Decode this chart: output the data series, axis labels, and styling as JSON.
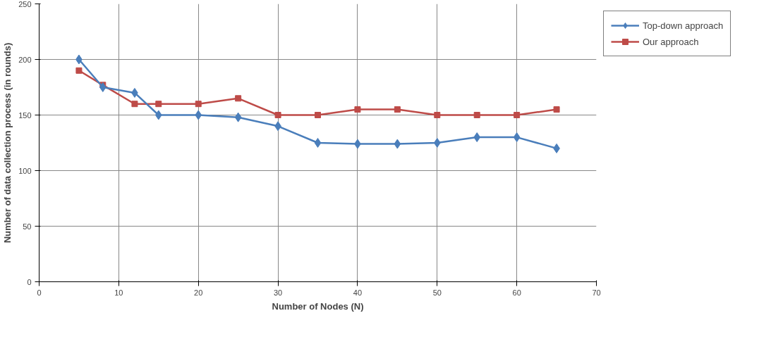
{
  "chart_data": {
    "type": "line",
    "xlabel": "Number of Nodes (N)",
    "ylabel": "Number of data collection process (in rounds)",
    "x": [
      5,
      8,
      12,
      15,
      20,
      25,
      30,
      35,
      40,
      45,
      50,
      55,
      60,
      65
    ],
    "series": [
      {
        "name": "Top-down approach",
        "color": "#4a7ebb",
        "marker": "diamond",
        "values": [
          200,
          175,
          170,
          150,
          150,
          148,
          140,
          125,
          124,
          124,
          125,
          130,
          130,
          120
        ]
      },
      {
        "name": "Our approach",
        "color": "#be4b48",
        "marker": "square",
        "values": [
          190,
          177,
          160,
          160,
          160,
          165,
          150,
          150,
          155,
          155,
          150,
          150,
          150,
          155
        ]
      }
    ],
    "xlim": [
      0,
      70
    ],
    "xticks": [
      0,
      10,
      20,
      30,
      40,
      50,
      60,
      70
    ],
    "ylim": [
      0,
      250
    ],
    "yticks": [
      0,
      50,
      100,
      150,
      200,
      250
    ],
    "grid": true,
    "legend": "top right",
    "line_style": "solid"
  }
}
